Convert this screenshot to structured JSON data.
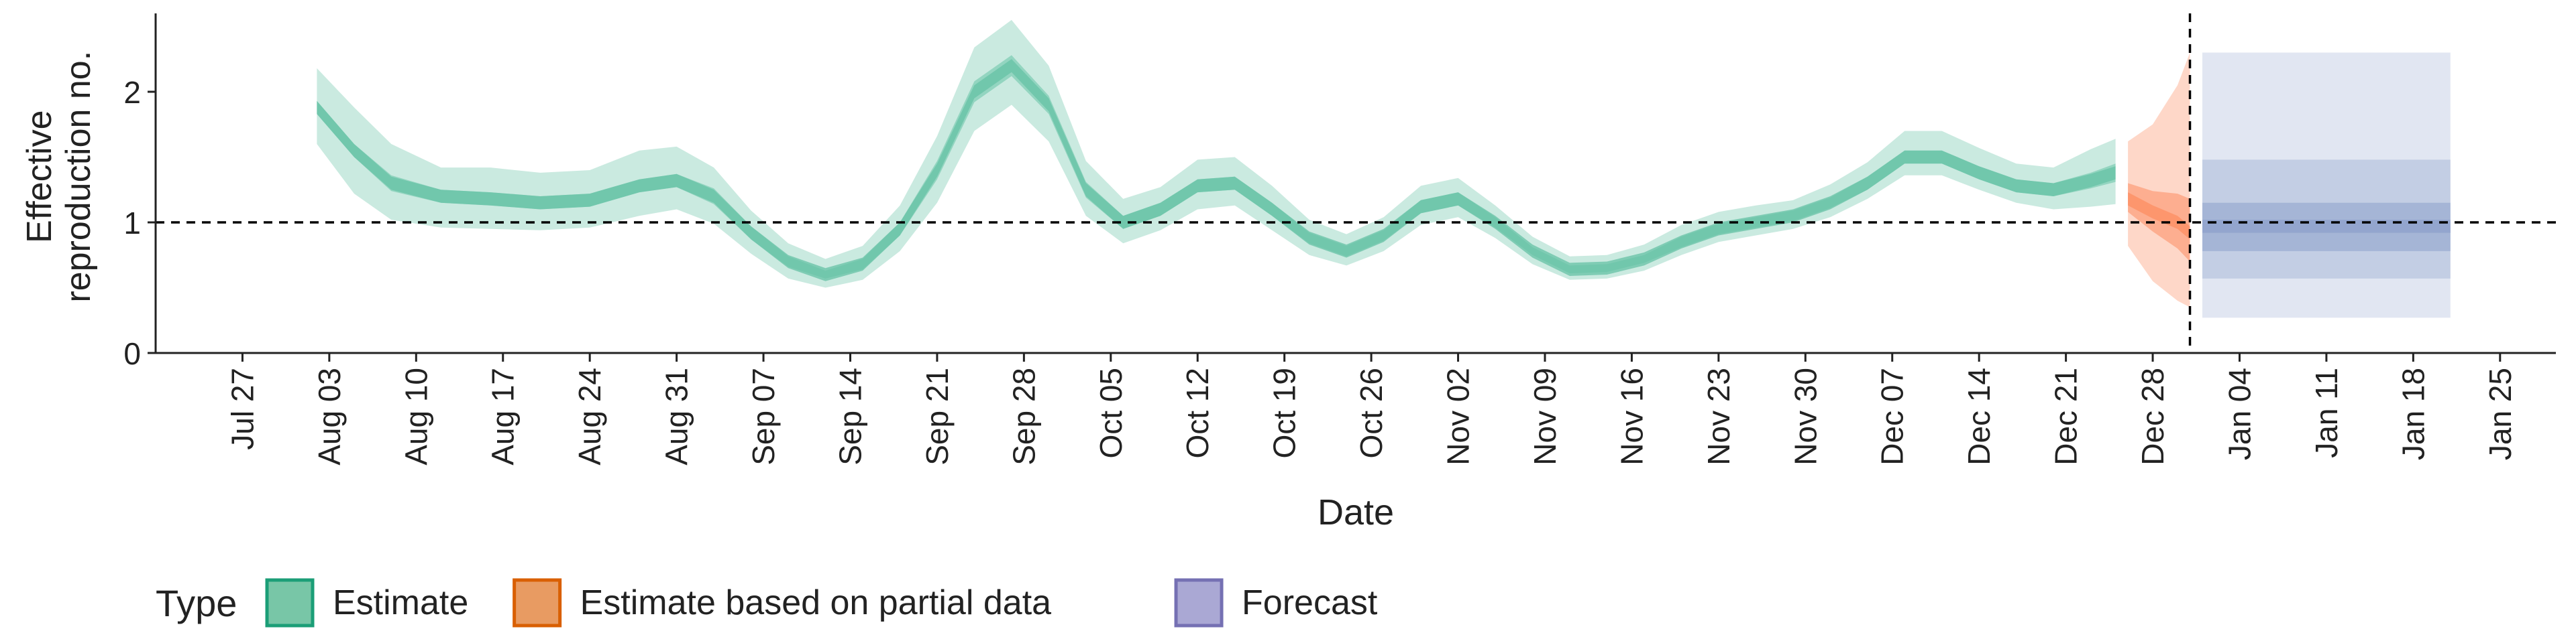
{
  "chart_data": {
    "type": "area",
    "xlabel": "Date",
    "ylabel_lines": [
      "Effective",
      "reproduction no."
    ],
    "ylim": [
      0,
      2.6
    ],
    "yticks": [
      0,
      1,
      2
    ],
    "reference_line_y": 1,
    "forecast_start_date": "2020-12-31",
    "xticks": [
      {
        "date": "2020-07-27",
        "label": "Jul 27"
      },
      {
        "date": "2020-08-03",
        "label": "Aug 03"
      },
      {
        "date": "2020-08-10",
        "label": "Aug 10"
      },
      {
        "date": "2020-08-17",
        "label": "Aug 17"
      },
      {
        "date": "2020-08-24",
        "label": "Aug 24"
      },
      {
        "date": "2020-08-31",
        "label": "Aug 31"
      },
      {
        "date": "2020-09-07",
        "label": "Sep 07"
      },
      {
        "date": "2020-09-14",
        "label": "Sep 14"
      },
      {
        "date": "2020-09-21",
        "label": "Sep 21"
      },
      {
        "date": "2020-09-28",
        "label": "Sep 28"
      },
      {
        "date": "2020-10-05",
        "label": "Oct 05"
      },
      {
        "date": "2020-10-12",
        "label": "Oct 12"
      },
      {
        "date": "2020-10-19",
        "label": "Oct 19"
      },
      {
        "date": "2020-10-26",
        "label": "Oct 26"
      },
      {
        "date": "2020-11-02",
        "label": "Nov 02"
      },
      {
        "date": "2020-11-09",
        "label": "Nov 09"
      },
      {
        "date": "2020-11-16",
        "label": "Nov 16"
      },
      {
        "date": "2020-11-23",
        "label": "Nov 23"
      },
      {
        "date": "2020-11-30",
        "label": "Nov 30"
      },
      {
        "date": "2020-12-07",
        "label": "Dec 07"
      },
      {
        "date": "2020-12-14",
        "label": "Dec 14"
      },
      {
        "date": "2020-12-21",
        "label": "Dec 21"
      },
      {
        "date": "2020-12-28",
        "label": "Dec 28"
      },
      {
        "date": "2021-01-04",
        "label": "Jan 04"
      },
      {
        "date": "2021-01-11",
        "label": "Jan 11"
      },
      {
        "date": "2021-01-18",
        "label": "Jan 18"
      },
      {
        "date": "2021-01-25",
        "label": "Jan 25"
      }
    ],
    "series": [
      {
        "name": "Estimate",
        "color": "#66c2a5",
        "x": [
          "2020-08-02",
          "2020-08-05",
          "2020-08-08",
          "2020-08-12",
          "2020-08-16",
          "2020-08-20",
          "2020-08-24",
          "2020-08-28",
          "2020-08-31",
          "2020-09-03",
          "2020-09-06",
          "2020-09-09",
          "2020-09-12",
          "2020-09-15",
          "2020-09-18",
          "2020-09-21",
          "2020-09-24",
          "2020-09-27",
          "2020-09-30",
          "2020-10-03",
          "2020-10-06",
          "2020-10-09",
          "2020-10-12",
          "2020-10-15",
          "2020-10-18",
          "2020-10-21",
          "2020-10-24",
          "2020-10-27",
          "2020-10-30",
          "2020-11-02",
          "2020-11-05",
          "2020-11-08",
          "2020-11-11",
          "2020-11-14",
          "2020-11-17",
          "2020-11-20",
          "2020-11-23",
          "2020-11-26",
          "2020-11-29",
          "2020-12-02",
          "2020-12-05",
          "2020-12-08",
          "2020-12-11",
          "2020-12-14",
          "2020-12-17",
          "2020-12-20",
          "2020-12-23",
          "2020-12-25"
        ],
        "median": [
          1.88,
          1.55,
          1.3,
          1.2,
          1.18,
          1.15,
          1.17,
          1.28,
          1.32,
          1.2,
          0.92,
          0.7,
          0.6,
          0.68,
          0.95,
          1.4,
          2.0,
          2.2,
          1.9,
          1.25,
          1.0,
          1.1,
          1.28,
          1.3,
          1.1,
          0.88,
          0.78,
          0.9,
          1.12,
          1.18,
          1.0,
          0.78,
          0.64,
          0.65,
          0.72,
          0.85,
          0.95,
          1.0,
          1.05,
          1.15,
          1.3,
          1.5,
          1.5,
          1.38,
          1.28,
          1.25,
          1.32,
          1.38
        ],
        "lower50": [
          1.83,
          1.5,
          1.24,
          1.15,
          1.13,
          1.1,
          1.12,
          1.23,
          1.27,
          1.14,
          0.87,
          0.66,
          0.57,
          0.64,
          0.9,
          1.33,
          1.92,
          2.12,
          1.83,
          1.19,
          0.95,
          1.05,
          1.23,
          1.25,
          1.05,
          0.84,
          0.74,
          0.86,
          1.07,
          1.13,
          0.96,
          0.75,
          0.61,
          0.62,
          0.69,
          0.81,
          0.91,
          0.96,
          1.01,
          1.11,
          1.25,
          1.45,
          1.45,
          1.33,
          1.23,
          1.2,
          1.26,
          1.31
        ],
        "upper50": [
          1.93,
          1.6,
          1.36,
          1.25,
          1.23,
          1.2,
          1.22,
          1.33,
          1.37,
          1.26,
          0.97,
          0.74,
          0.63,
          0.72,
          1.0,
          1.47,
          2.08,
          2.28,
          1.97,
          1.31,
          1.05,
          1.15,
          1.33,
          1.35,
          1.15,
          0.92,
          0.82,
          0.94,
          1.17,
          1.23,
          1.04,
          0.81,
          0.67,
          0.68,
          0.75,
          0.89,
          0.99,
          1.04,
          1.09,
          1.19,
          1.35,
          1.55,
          1.55,
          1.43,
          1.33,
          1.3,
          1.38,
          1.45
        ],
        "lower90": [
          1.6,
          1.22,
          1.02,
          0.96,
          0.95,
          0.94,
          0.96,
          1.05,
          1.1,
          0.99,
          0.76,
          0.57,
          0.5,
          0.56,
          0.78,
          1.15,
          1.7,
          1.9,
          1.62,
          1.05,
          0.84,
          0.94,
          1.1,
          1.13,
          0.94,
          0.75,
          0.67,
          0.78,
          0.98,
          1.04,
          0.88,
          0.68,
          0.56,
          0.57,
          0.63,
          0.75,
          0.85,
          0.9,
          0.95,
          1.04,
          1.18,
          1.36,
          1.36,
          1.25,
          1.15,
          1.1,
          1.12,
          1.14
        ],
        "upper90": [
          2.18,
          1.88,
          1.6,
          1.42,
          1.42,
          1.38,
          1.4,
          1.55,
          1.58,
          1.42,
          1.09,
          0.84,
          0.72,
          0.82,
          1.13,
          1.66,
          2.34,
          2.55,
          2.2,
          1.47,
          1.18,
          1.27,
          1.48,
          1.5,
          1.28,
          1.02,
          0.91,
          1.04,
          1.28,
          1.34,
          1.13,
          0.89,
          0.74,
          0.75,
          0.83,
          0.98,
          1.08,
          1.13,
          1.17,
          1.29,
          1.46,
          1.7,
          1.7,
          1.57,
          1.45,
          1.42,
          1.56,
          1.64
        ]
      },
      {
        "name": "Estimate based on partial data",
        "color": "#fc8d62",
        "x": [
          "2020-12-26",
          "2020-12-28",
          "2020-12-30",
          "2020-12-31"
        ],
        "median": [
          1.18,
          1.08,
          1.0,
          0.92
        ],
        "lower50": [
          1.08,
          0.93,
          0.8,
          0.7
        ],
        "upper50": [
          1.3,
          1.24,
          1.22,
          1.18
        ],
        "lower90": [
          0.82,
          0.55,
          0.4,
          0.35
        ],
        "upper90": [
          1.62,
          1.75,
          2.05,
          2.3
        ]
      },
      {
        "name": "Forecast",
        "color": "#8da0cb",
        "x": [
          "2021-01-01",
          "2021-01-21"
        ],
        "median": [
          0.97,
          0.97
        ],
        "lower50": [
          0.78,
          0.78
        ],
        "upper50": [
          1.15,
          1.15
        ],
        "lower90": [
          0.57,
          0.57
        ],
        "upper90": [
          1.48,
          1.48
        ],
        "lower_outer": [
          0.27,
          0.27
        ],
        "upper_outer": [
          2.3,
          2.3
        ]
      }
    ],
    "legend": {
      "title": "Type",
      "position": "bottom",
      "items": [
        {
          "label": "Estimate",
          "fill": "#78c6a7",
          "stroke": "#1b9e77"
        },
        {
          "label": "Estimate based on partial data",
          "fill": "#e89b62",
          "stroke": "#d95f02"
        },
        {
          "label": "Forecast",
          "fill": "#aaa8d4",
          "stroke": "#7570b3"
        }
      ]
    },
    "grid": false
  }
}
